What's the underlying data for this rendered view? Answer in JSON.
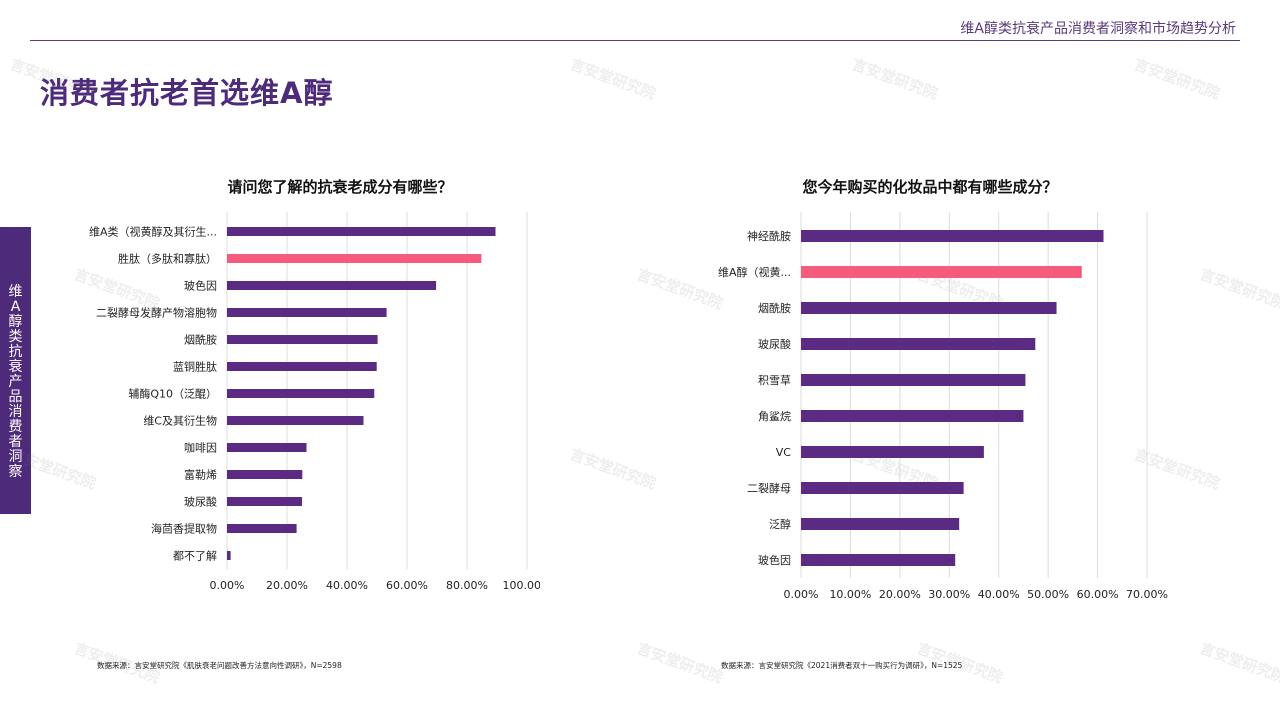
{
  "header": {
    "title": "维A醇类抗衰产品消费者洞察和市场趋势分析"
  },
  "page_title": "消费者抗老首选维A醇",
  "side_tab": "维A醇类抗衰产品消费者洞察",
  "watermark": "言安堂研究院",
  "colors": {
    "accent": "#4e2a7a",
    "bar": "#5b2a82",
    "highlight": "#f45b7c",
    "grid": "#dcdcdc"
  },
  "chart_data": [
    {
      "type": "bar",
      "orientation": "horizontal",
      "title": "请问您了解的抗衰老成分有哪些？",
      "categories": [
        "维A类（视黄醇及其衍生...",
        "胜肽（多肽和寡肽）",
        "玻色因",
        "二裂酵母发酵产物溶胞物",
        "烟酰胺",
        "蓝铜胜肽",
        "辅酶Q10（泛醌）",
        "维C及其衍生物",
        "咖啡因",
        "富勒烯",
        "玻尿酸",
        "海茴香提取物",
        "都不了解"
      ],
      "values": [
        0.895,
        0.848,
        0.697,
        0.532,
        0.502,
        0.499,
        0.491,
        0.455,
        0.265,
        0.251,
        0.25,
        0.232,
        0.012
      ],
      "highlight_index": 1,
      "xlim": [
        0,
        1.0
      ],
      "xticks": [
        "0.00%",
        "20.00%",
        "40.00%",
        "60.00%",
        "80.00%",
        "100.00%"
      ],
      "source": "数据来源：言安堂研究院《肌肤衰老问题改善方法意向性调研》，N=2598"
    },
    {
      "type": "bar",
      "orientation": "horizontal",
      "title": "您今年购买的化妆品中都有哪些成分？",
      "categories": [
        "神经酰胺",
        "维A醇（视黄...",
        "烟酰胺",
        "玻尿酸",
        "积雪草",
        "角鲨烷",
        "VC",
        "二裂酵母",
        "泛醇",
        "玻色因"
      ],
      "values": [
        0.612,
        0.568,
        0.517,
        0.474,
        0.454,
        0.45,
        0.37,
        0.329,
        0.32,
        0.312
      ],
      "highlight_index": 1,
      "xlim": [
        0,
        0.7
      ],
      "xticks": [
        "0.00%",
        "10.00%",
        "20.00%",
        "30.00%",
        "40.00%",
        "50.00%",
        "60.00%",
        "70.00%"
      ],
      "source": "数据来源：言安堂研究院《2021消费者双十一购买行为调研》，N=1525"
    }
  ]
}
